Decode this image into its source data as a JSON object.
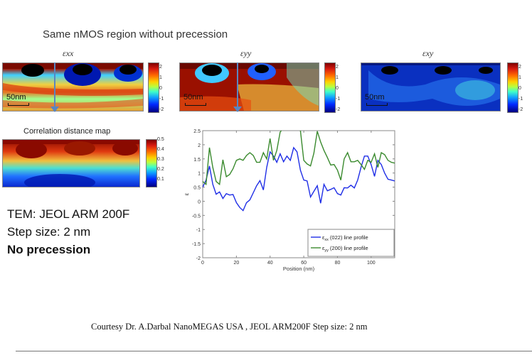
{
  "title": "Same nMOS region without precession",
  "maps": [
    {
      "label": "εxx",
      "scale_bar": "50nm",
      "colorbar_ticks": [
        "2",
        "1",
        "0",
        "-1",
        "-2"
      ],
      "has_arrow": true
    },
    {
      "label": "εyy",
      "scale_bar": "50nm",
      "colorbar_ticks": [
        "2",
        "1",
        "0",
        "-1",
        "-2"
      ],
      "has_arrow": true
    },
    {
      "label": "εxy",
      "scale_bar": "50nm",
      "colorbar_ticks": [
        "2",
        "1",
        "0",
        "-1",
        "-2"
      ],
      "has_arrow": false
    }
  ],
  "correlation_map": {
    "label": "Correlation distance map",
    "colorbar_ticks": [
      "0.5",
      "0.4",
      "0.3",
      "0.2",
      "0.1"
    ]
  },
  "info": {
    "line1": "TEM: JEOL ARM 200F",
    "line2": "Step size: 2 nm",
    "line3": "No precession"
  },
  "courtesy": "Courtesy  Dr. A.Darbal  NanoMEGAS USA , JEOL ARM200F  Step size: 2 nm",
  "colors": {
    "exx": "#1f2ee6",
    "eyy": "#3a8a2e"
  },
  "chart_data": {
    "type": "line",
    "title": "",
    "xlabel": "Position (nm)",
    "ylabel": "ε",
    "xlim": [
      0,
      114
    ],
    "ylim": [
      -2,
      2.5
    ],
    "xticks": [
      0,
      20,
      40,
      60,
      80,
      100
    ],
    "yticks": [
      2.5,
      2,
      1.5,
      1,
      0.5,
      0,
      -0.5,
      -1,
      -1.5,
      -2
    ],
    "legend": "bottom-right",
    "grid": false,
    "series": [
      {
        "name": "εxx (022) line profile",
        "label_main": "ε",
        "label_sub": "xx",
        "label_rest": " (022) line profile",
        "color": "#1f2ee6",
        "x": [
          0,
          2,
          4,
          6,
          8,
          10,
          12,
          14,
          16,
          18,
          20,
          22,
          24,
          26,
          28,
          30,
          32,
          34,
          36,
          38,
          40,
          42,
          44,
          46,
          48,
          50,
          52,
          54,
          56,
          58,
          60,
          62,
          64,
          66,
          68,
          70,
          72,
          74,
          76,
          78,
          80,
          82,
          84,
          86,
          88,
          90,
          92,
          94,
          96,
          98,
          100,
          102,
          104,
          106,
          108,
          110,
          112,
          114
        ],
        "y": [
          0.5,
          0.75,
          1.25,
          0.6,
          0.25,
          0.33,
          0.1,
          0.27,
          0.22,
          0.24,
          -0.05,
          -0.22,
          -0.33,
          -0.05,
          0.05,
          0.3,
          0.55,
          0.73,
          0.4,
          1.2,
          1.75,
          1.6,
          1.38,
          1.68,
          1.4,
          1.6,
          1.45,
          1.9,
          1.75,
          1.1,
          0.75,
          0.72,
          0.15,
          0.35,
          0.55,
          -0.07,
          0.6,
          0.37,
          0.42,
          0.48,
          0.27,
          0.22,
          0.48,
          0.47,
          0.57,
          0.47,
          0.75,
          1.2,
          1.6,
          1.6,
          1.3,
          0.88,
          1.45,
          1.3,
          1.0,
          0.78,
          0.75,
          0.72
        ]
      },
      {
        "name": "εyy (200) line profile",
        "label_main": "ε",
        "label_sub": "yy",
        "label_rest": " (200) line profile",
        "color": "#3a8a2e",
        "x": [
          0,
          2,
          4,
          6,
          8,
          10,
          12,
          14,
          16,
          18,
          20,
          22,
          24,
          26,
          28,
          30,
          32,
          34,
          36,
          38,
          40,
          42,
          44,
          46,
          48,
          50,
          52,
          54,
          56,
          58,
          60,
          62,
          64,
          66,
          68,
          70,
          72,
          74,
          76,
          78,
          80,
          82,
          84,
          86,
          88,
          90,
          92,
          94,
          96,
          98,
          100,
          102,
          104,
          106,
          108,
          110,
          112,
          114
        ],
        "y": [
          0.7,
          0.6,
          1.9,
          1.2,
          0.7,
          0.6,
          1.47,
          0.87,
          0.95,
          1.15,
          1.45,
          1.5,
          1.45,
          1.62,
          1.72,
          1.62,
          1.38,
          1.38,
          1.72,
          1.5,
          2.22,
          1.45,
          1.8,
          2.45,
          2.6,
          2.7,
          2.8,
          2.9,
          2.75,
          2.5,
          1.45,
          1.32,
          1.25,
          1.7,
          2.48,
          2.1,
          1.8,
          1.55,
          1.28,
          1.3,
          1.1,
          0.75,
          1.5,
          1.72,
          1.4,
          1.4,
          1.45,
          1.3,
          1.13,
          1.45,
          1.38,
          1.68,
          1.2,
          1.72,
          1.65,
          1.45,
          1.38,
          1.35
        ]
      }
    ]
  }
}
